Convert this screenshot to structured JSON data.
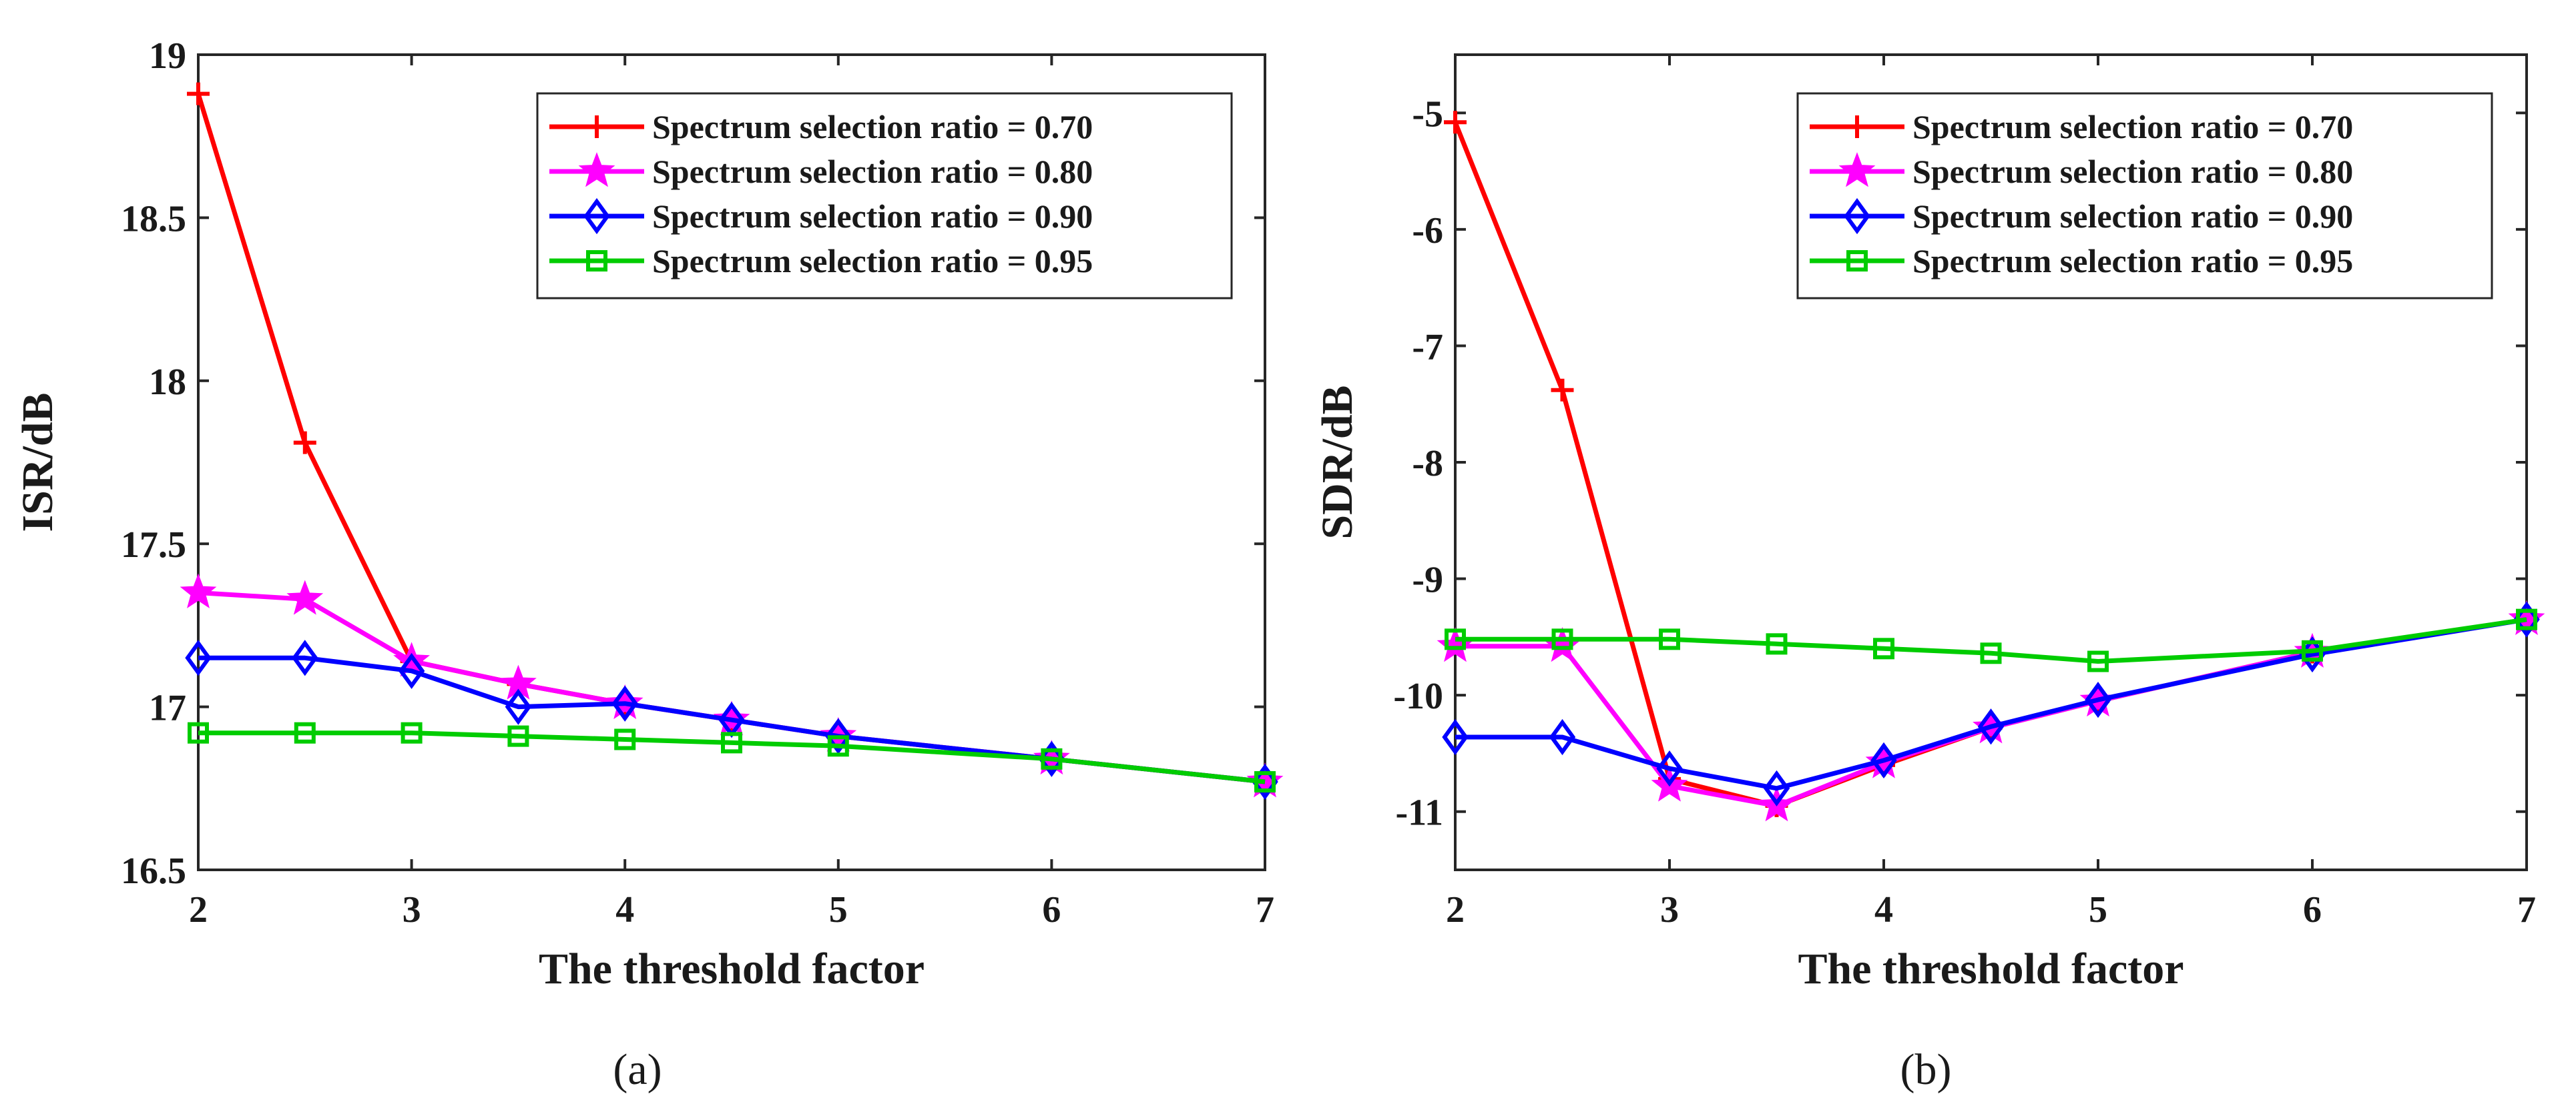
{
  "chart_data": [
    {
      "type": "line",
      "panel_label": "(a)",
      "xlabel": "The threshold factor",
      "ylabel": "ISR/dB",
      "xlim": [
        2,
        7
      ],
      "ylim": [
        16.5,
        19
      ],
      "xticks": [
        2,
        3,
        4,
        5,
        6,
        7
      ],
      "yticks": [
        16.5,
        17,
        17.5,
        18,
        18.5,
        19
      ],
      "ytick_labels": [
        "16.5",
        "17",
        "17.5",
        "18",
        "18.5",
        "19"
      ],
      "grid": false,
      "legend_position": "top-right",
      "x": [
        2,
        2.5,
        3,
        3.5,
        4,
        4.5,
        5,
        6,
        7
      ],
      "series": [
        {
          "name": "Spectrum selection ratio = 0.70",
          "color": "#ff0000",
          "marker": "plus",
          "values": [
            18.88,
            17.81,
            17.14,
            17.07,
            17.01,
            16.96,
            16.91,
            16.84,
            16.77
          ]
        },
        {
          "name": "Spectrum selection ratio = 0.80",
          "color": "#ff00ff",
          "marker": "star",
          "values": [
            17.35,
            17.33,
            17.14,
            17.07,
            17.01,
            16.96,
            16.91,
            16.84,
            16.77
          ]
        },
        {
          "name": "Spectrum selection ratio = 0.90",
          "color": "#0000ff",
          "marker": "diamond",
          "values": [
            17.15,
            17.15,
            17.11,
            17.0,
            17.01,
            16.96,
            16.91,
            16.84,
            16.77
          ]
        },
        {
          "name": "Spectrum selection ratio = 0.95",
          "color": "#00cc00",
          "marker": "square",
          "values": [
            16.92,
            16.92,
            16.92,
            16.91,
            16.9,
            16.89,
            16.88,
            16.84,
            16.77
          ]
        }
      ]
    },
    {
      "type": "line",
      "panel_label": "(b)",
      "xlabel": "The threshold factor",
      "ylabel": "SDR/dB",
      "xlim": [
        2,
        7
      ],
      "ylim": [
        -11.5,
        -4.5
      ],
      "xticks": [
        2,
        3,
        4,
        5,
        6,
        7
      ],
      "yticks": [
        -11,
        -10,
        -9,
        -8,
        -7,
        -6,
        -5
      ],
      "ytick_labels": [
        "-11",
        "-10",
        "-9",
        "-8",
        "-7",
        "-6",
        "-5"
      ],
      "grid": false,
      "legend_position": "top-right",
      "x": [
        2,
        2.5,
        3,
        3.5,
        4,
        4.5,
        5,
        6,
        7
      ],
      "series": [
        {
          "name": "Spectrum selection ratio = 0.70",
          "color": "#ff0000",
          "marker": "plus",
          "values": [
            -5.08,
            -7.38,
            -10.72,
            -10.95,
            -10.6,
            -10.28,
            -10.05,
            -9.63,
            -9.35
          ]
        },
        {
          "name": "Spectrum selection ratio = 0.80",
          "color": "#ff00ff",
          "marker": "star",
          "values": [
            -9.58,
            -9.58,
            -10.78,
            -10.95,
            -10.58,
            -10.28,
            -10.05,
            -9.63,
            -9.35
          ]
        },
        {
          "name": "Spectrum selection ratio = 0.90",
          "color": "#0000ff",
          "marker": "diamond",
          "values": [
            -10.36,
            -10.36,
            -10.63,
            -10.8,
            -10.56,
            -10.27,
            -10.04,
            -9.65,
            -9.35
          ]
        },
        {
          "name": "Spectrum selection ratio = 0.95",
          "color": "#00cc00",
          "marker": "square",
          "values": [
            -9.52,
            -9.52,
            -9.52,
            -9.56,
            -9.6,
            -9.64,
            -9.71,
            -9.62,
            -9.35
          ]
        }
      ]
    }
  ]
}
